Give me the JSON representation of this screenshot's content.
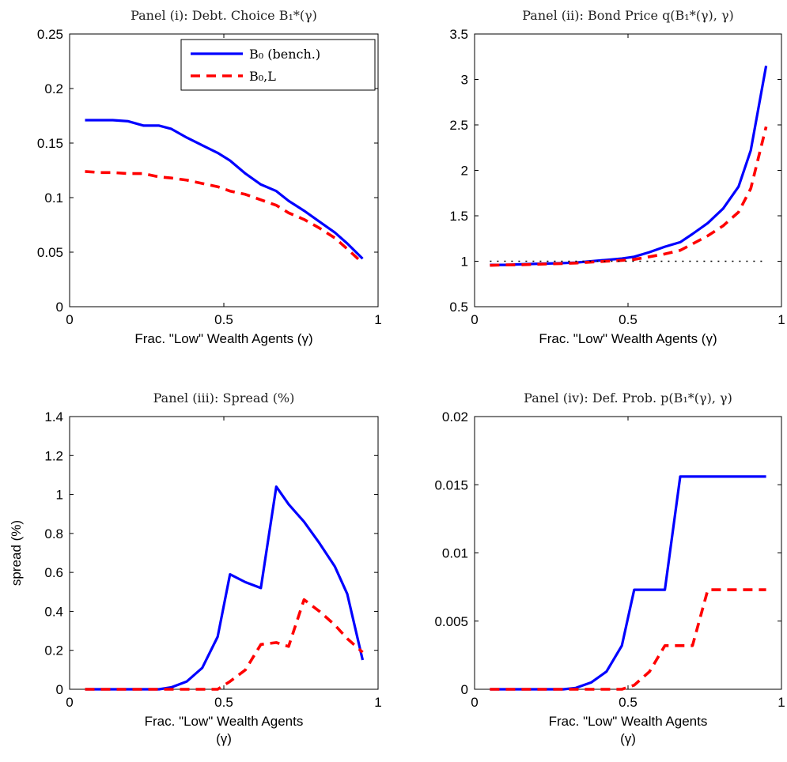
{
  "chart_data": [
    {
      "type": "line",
      "title": "Panel (i): Debt. Choice B₁*(γ)",
      "xlabel": "Frac. \"Low\" Wealth Agents (γ)",
      "xlabel_lines": [
        "Frac. \"Low\" Wealth Agents (γ)"
      ],
      "ylabel": "",
      "xlim": [
        0,
        1
      ],
      "ylim": [
        0,
        0.25
      ],
      "xticks": [
        0,
        0.5,
        1
      ],
      "xtick_labels": [
        "0",
        "0.5",
        "1"
      ],
      "yticks": [
        0,
        0.05,
        0.1,
        0.15,
        0.2,
        0.25
      ],
      "ytick_labels": [
        "0",
        "0.05",
        "0.1",
        "0.15",
        "0.2",
        "0.25"
      ],
      "legend": {
        "placement": "top-right",
        "entries": [
          "B₀ (bench.)",
          "B₀,L"
        ]
      },
      "series": [
        {
          "name": "B₀ (bench.)",
          "color": "#0000ff",
          "dash": "solid",
          "x": [
            0.05,
            0.1,
            0.14,
            0.19,
            0.24,
            0.29,
            0.33,
            0.38,
            0.43,
            0.48,
            0.52,
            0.57,
            0.62,
            0.67,
            0.71,
            0.76,
            0.81,
            0.86,
            0.9,
            0.95
          ],
          "y": [
            0.171,
            0.171,
            0.171,
            0.17,
            0.166,
            0.166,
            0.163,
            0.155,
            0.148,
            0.141,
            0.134,
            0.122,
            0.112,
            0.106,
            0.097,
            0.088,
            0.078,
            0.068,
            0.058,
            0.044
          ]
        },
        {
          "name": "B₀,L",
          "color": "#ff0000",
          "dash": "dashed",
          "x": [
            0.05,
            0.1,
            0.14,
            0.19,
            0.24,
            0.29,
            0.33,
            0.38,
            0.43,
            0.48,
            0.52,
            0.57,
            0.62,
            0.67,
            0.71,
            0.76,
            0.81,
            0.86,
            0.9,
            0.95
          ],
          "y": [
            0.124,
            0.123,
            0.123,
            0.122,
            0.122,
            0.119,
            0.118,
            0.116,
            0.113,
            0.11,
            0.106,
            0.103,
            0.098,
            0.093,
            0.086,
            0.08,
            0.072,
            0.063,
            0.053,
            0.04
          ]
        }
      ]
    },
    {
      "type": "line",
      "title": "Panel (ii): Bond Price q(B₁*(γ), γ)",
      "xlabel": "Frac. \"Low\" Wealth Agents (γ)",
      "xlabel_lines": [
        "Frac. \"Low\" Wealth Agents (γ)"
      ],
      "ylabel": "",
      "xlim": [
        0,
        1
      ],
      "ylim": [
        0.5,
        3.5
      ],
      "xticks": [
        0,
        0.5,
        1
      ],
      "xtick_labels": [
        "0",
        "0.5",
        "1"
      ],
      "yticks": [
        0.5,
        1,
        1.5,
        2,
        2.5,
        3,
        3.5
      ],
      "ytick_labels": [
        "0.5",
        "1",
        "1.5",
        "2",
        "2.5",
        "3",
        "3.5"
      ],
      "series": [
        {
          "name": "",
          "color": "#0000ff",
          "dash": "solid",
          "x": [
            0.05,
            0.1,
            0.14,
            0.19,
            0.24,
            0.29,
            0.33,
            0.38,
            0.43,
            0.48,
            0.52,
            0.57,
            0.62,
            0.67,
            0.71,
            0.76,
            0.81,
            0.86,
            0.9,
            0.95
          ],
          "y": [
            0.96,
            0.96,
            0.965,
            0.97,
            0.975,
            0.98,
            0.985,
            1.0,
            1.015,
            1.03,
            1.05,
            1.1,
            1.16,
            1.21,
            1.3,
            1.42,
            1.58,
            1.82,
            2.22,
            3.15
          ]
        },
        {
          "name": "",
          "color": "#ff0000",
          "dash": "dashed",
          "x": [
            0.05,
            0.1,
            0.14,
            0.19,
            0.24,
            0.29,
            0.33,
            0.38,
            0.43,
            0.48,
            0.52,
            0.57,
            0.62,
            0.67,
            0.71,
            0.76,
            0.81,
            0.86,
            0.9,
            0.95
          ],
          "y": [
            0.955,
            0.96,
            0.96,
            0.965,
            0.97,
            0.975,
            0.98,
            0.99,
            1.0,
            1.01,
            1.02,
            1.05,
            1.08,
            1.12,
            1.19,
            1.28,
            1.39,
            1.54,
            1.8,
            2.48
          ]
        },
        {
          "name": "",
          "color": "#000000",
          "dash": "dotted",
          "x": [
            0.05,
            0.95
          ],
          "y": [
            1.0,
            1.0
          ]
        }
      ]
    },
    {
      "type": "line",
      "title": "Panel (iii): Spread (%)",
      "xlabel": "Frac. \"Low\" Wealth Agents (γ)",
      "xlabel_lines": [
        "Frac. \"Low\" Wealth Agents",
        "(γ)"
      ],
      "ylabel": "spread (%)",
      "xlim": [
        0,
        1
      ],
      "ylim": [
        0,
        1.4
      ],
      "xticks": [
        0,
        0.5,
        1
      ],
      "xtick_labels": [
        "0",
        "0.5",
        "1"
      ],
      "yticks": [
        0,
        0.2,
        0.4,
        0.6,
        0.8,
        1,
        1.2,
        1.4
      ],
      "ytick_labels": [
        "0",
        "0.2",
        "0.4",
        "0.6",
        "0.8",
        "1",
        "1.2",
        "1.4"
      ],
      "series": [
        {
          "name": "",
          "color": "#0000ff",
          "dash": "solid",
          "x": [
            0.05,
            0.1,
            0.14,
            0.19,
            0.24,
            0.29,
            0.33,
            0.38,
            0.43,
            0.48,
            0.52,
            0.57,
            0.62,
            0.67,
            0.71,
            0.76,
            0.81,
            0.86,
            0.9,
            0.95
          ],
          "y": [
            0,
            0,
            0,
            0,
            0,
            0,
            0.01,
            0.04,
            0.11,
            0.27,
            0.59,
            0.55,
            0.52,
            1.04,
            0.95,
            0.86,
            0.75,
            0.63,
            0.49,
            0.15
          ]
        },
        {
          "name": "",
          "color": "#ff0000",
          "dash": "dashed",
          "x": [
            0.05,
            0.1,
            0.14,
            0.19,
            0.24,
            0.29,
            0.33,
            0.38,
            0.43,
            0.48,
            0.52,
            0.57,
            0.62,
            0.67,
            0.71,
            0.76,
            0.81,
            0.86,
            0.9,
            0.95
          ],
          "y": [
            0,
            0,
            0,
            0,
            0,
            0,
            0,
            0,
            0,
            0,
            0.04,
            0.1,
            0.23,
            0.24,
            0.22,
            0.46,
            0.4,
            0.33,
            0.26,
            0.19
          ]
        }
      ]
    },
    {
      "type": "line",
      "title": "Panel (iv): Def. Prob. p(B₁*(γ), γ)",
      "xlabel": "Frac. \"Low\" Wealth Agents (γ)",
      "xlabel_lines": [
        "Frac. \"Low\" Wealth Agents",
        "(γ)"
      ],
      "ylabel": "",
      "xlim": [
        0,
        1
      ],
      "ylim": [
        0,
        0.02
      ],
      "xticks": [
        0,
        0.5,
        1
      ],
      "xtick_labels": [
        "0",
        "0.5",
        "1"
      ],
      "yticks": [
        0,
        0.005,
        0.01,
        0.015,
        0.02
      ],
      "ytick_labels": [
        "0",
        "0.005",
        "0.01",
        "0.015",
        "0.02"
      ],
      "series": [
        {
          "name": "",
          "color": "#0000ff",
          "dash": "solid",
          "x": [
            0.05,
            0.1,
            0.14,
            0.19,
            0.24,
            0.29,
            0.33,
            0.38,
            0.43,
            0.48,
            0.52,
            0.57,
            0.62,
            0.67,
            0.71,
            0.76,
            0.81,
            0.86,
            0.9,
            0.95
          ],
          "y": [
            0,
            0,
            0,
            0,
            0,
            0,
            0.0001,
            0.0005,
            0.0013,
            0.0032,
            0.0073,
            0.0073,
            0.0073,
            0.0156,
            0.0156,
            0.0156,
            0.0156,
            0.0156,
            0.0156,
            0.0156
          ]
        },
        {
          "name": "",
          "color": "#ff0000",
          "dash": "dashed",
          "x": [
            0.05,
            0.1,
            0.14,
            0.19,
            0.24,
            0.29,
            0.33,
            0.38,
            0.43,
            0.48,
            0.52,
            0.57,
            0.62,
            0.67,
            0.71,
            0.76,
            0.81,
            0.86,
            0.9,
            0.95
          ],
          "y": [
            0,
            0,
            0,
            0,
            0,
            0,
            0,
            0,
            0,
            0,
            0.0003,
            0.0013,
            0.0032,
            0.0032,
            0.0032,
            0.0073,
            0.0073,
            0.0073,
            0.0073,
            0.0073
          ]
        }
      ]
    }
  ]
}
